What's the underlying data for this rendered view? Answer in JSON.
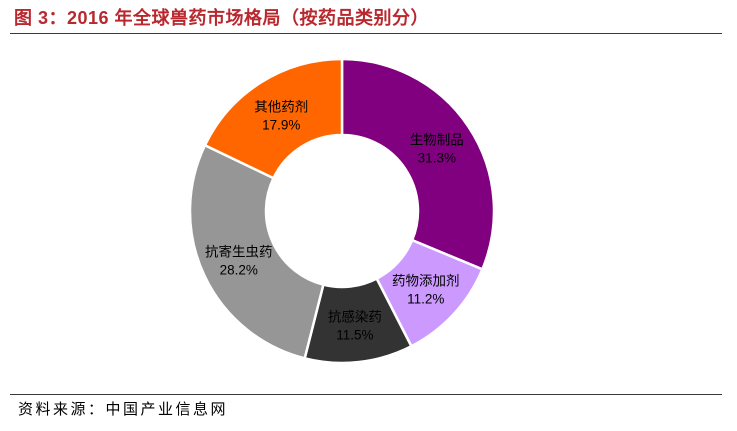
{
  "chart_data": {
    "type": "pie",
    "donut": true,
    "title": "图 3：2016 年全球兽药市场格局（按药品类别分）",
    "categories": [
      "生物制品",
      "药物添加剂",
      "抗感染药",
      "抗寄生虫药",
      "其他药剂"
    ],
    "values": [
      31.3,
      11.2,
      11.5,
      28.2,
      17.9
    ],
    "value_labels": [
      "31.3%",
      "11.2%",
      "11.5%",
      "28.2%",
      "17.9%"
    ],
    "colors": [
      "#800080",
      "#CC99FF",
      "#333333",
      "#969696",
      "#FF6600"
    ],
    "legend": "none"
  },
  "source": "资料来源：中国产业信息网"
}
